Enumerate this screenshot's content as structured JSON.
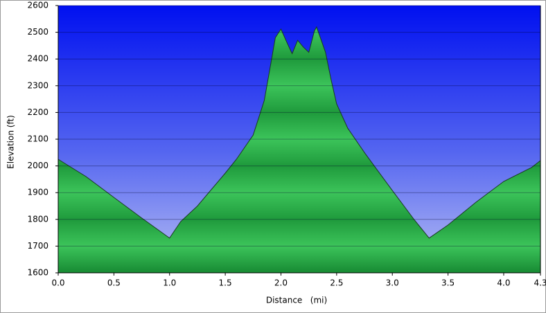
{
  "chart_data": {
    "type": "area",
    "x_label": "Distance   (mi)",
    "y_label": "Elevation (ft)",
    "x": [
      0,
      0.25,
      0.5,
      0.75,
      0.95,
      1.0,
      1.1,
      1.25,
      1.5,
      1.6,
      1.75,
      1.85,
      1.9,
      1.95,
      2.0,
      2.05,
      2.1,
      2.15,
      2.2,
      2.25,
      2.3,
      2.32,
      2.4,
      2.45,
      2.5,
      2.6,
      2.75,
      3.0,
      3.2,
      3.33,
      3.5,
      3.75,
      4.0,
      4.25,
      4.33
    ],
    "values": [
      2025,
      1960,
      1882,
      1805,
      1745,
      1730,
      1792,
      1850,
      1973,
      2025,
      2115,
      2245,
      2362,
      2480,
      2512,
      2465,
      2420,
      2470,
      2445,
      2425,
      2505,
      2520,
      2425,
      2323,
      2232,
      2141,
      2050,
      1908,
      1797,
      1730,
      1779,
      1864,
      1942,
      1994,
      2020
    ],
    "color": "#22a844",
    "xlim": [
      0,
      4.33
    ],
    "ylim": [
      1600,
      2600
    ],
    "xticks": [
      {
        "value": 0,
        "label": "0.0"
      },
      0.5,
      {
        "value": 1,
        "label": "1.0"
      },
      1.5,
      {
        "value": 2,
        "label": "2.0"
      },
      2.5,
      {
        "value": 3,
        "label": "3.0"
      },
      3.5,
      {
        "value": 4,
        "label": "4.0"
      },
      {
        "value": 4.33,
        "label": "4.3"
      }
    ],
    "yticks": [
      1600,
      1700,
      1800,
      1900,
      2000,
      2100,
      2200,
      2300,
      2400,
      2500,
      2600
    ],
    "grid": true
  }
}
